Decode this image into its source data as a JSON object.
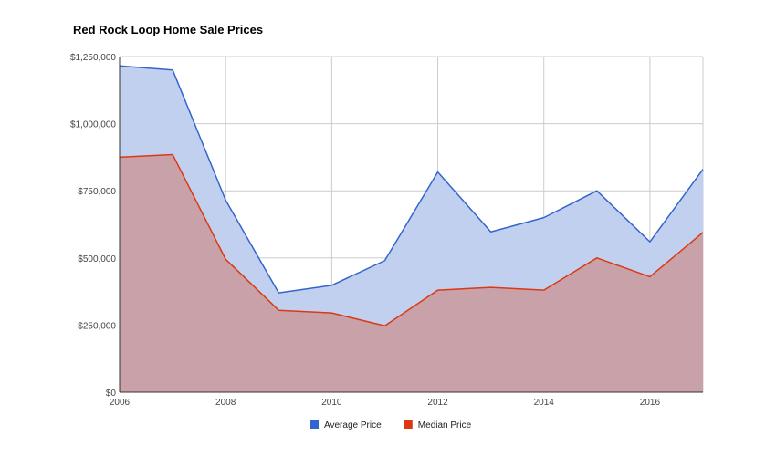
{
  "chart_data": {
    "type": "area",
    "title": "Red Rock Loop Home Sale Prices",
    "xlabel": "",
    "ylabel": "",
    "x": [
      2006,
      2007,
      2008,
      2009,
      2010,
      2011,
      2012,
      2013,
      2014,
      2015,
      2016,
      2017
    ],
    "x_ticks": [
      2006,
      2008,
      2010,
      2012,
      2014,
      2016
    ],
    "x_tick_labels": [
      "2006",
      "2008",
      "2010",
      "2012",
      "2014",
      "2016"
    ],
    "xlim": [
      2006,
      2017
    ],
    "ylim": [
      0,
      1250000
    ],
    "y_ticks": [
      0,
      250000,
      500000,
      750000,
      1000000,
      1250000
    ],
    "y_tick_labels": [
      "$0",
      "$250,000",
      "$500,000",
      "$750,000",
      "$1,000,000",
      "$1,250,000"
    ],
    "grid": true,
    "legend_position": "bottom",
    "series": [
      {
        "name": "Average Price",
        "color": "#3366cc",
        "fill": "#c1d0ef",
        "values": [
          1215000,
          1200000,
          715000,
          370000,
          398000,
          490000,
          820000,
          597000,
          650000,
          750000,
          560000,
          830000
        ]
      },
      {
        "name": "Median Price",
        "color": "#dc3912",
        "fill": "#c8a1a9",
        "values": [
          875000,
          885000,
          495000,
          305000,
          295000,
          247000,
          380000,
          390000,
          380000,
          500000,
          430000,
          595000
        ]
      }
    ]
  }
}
